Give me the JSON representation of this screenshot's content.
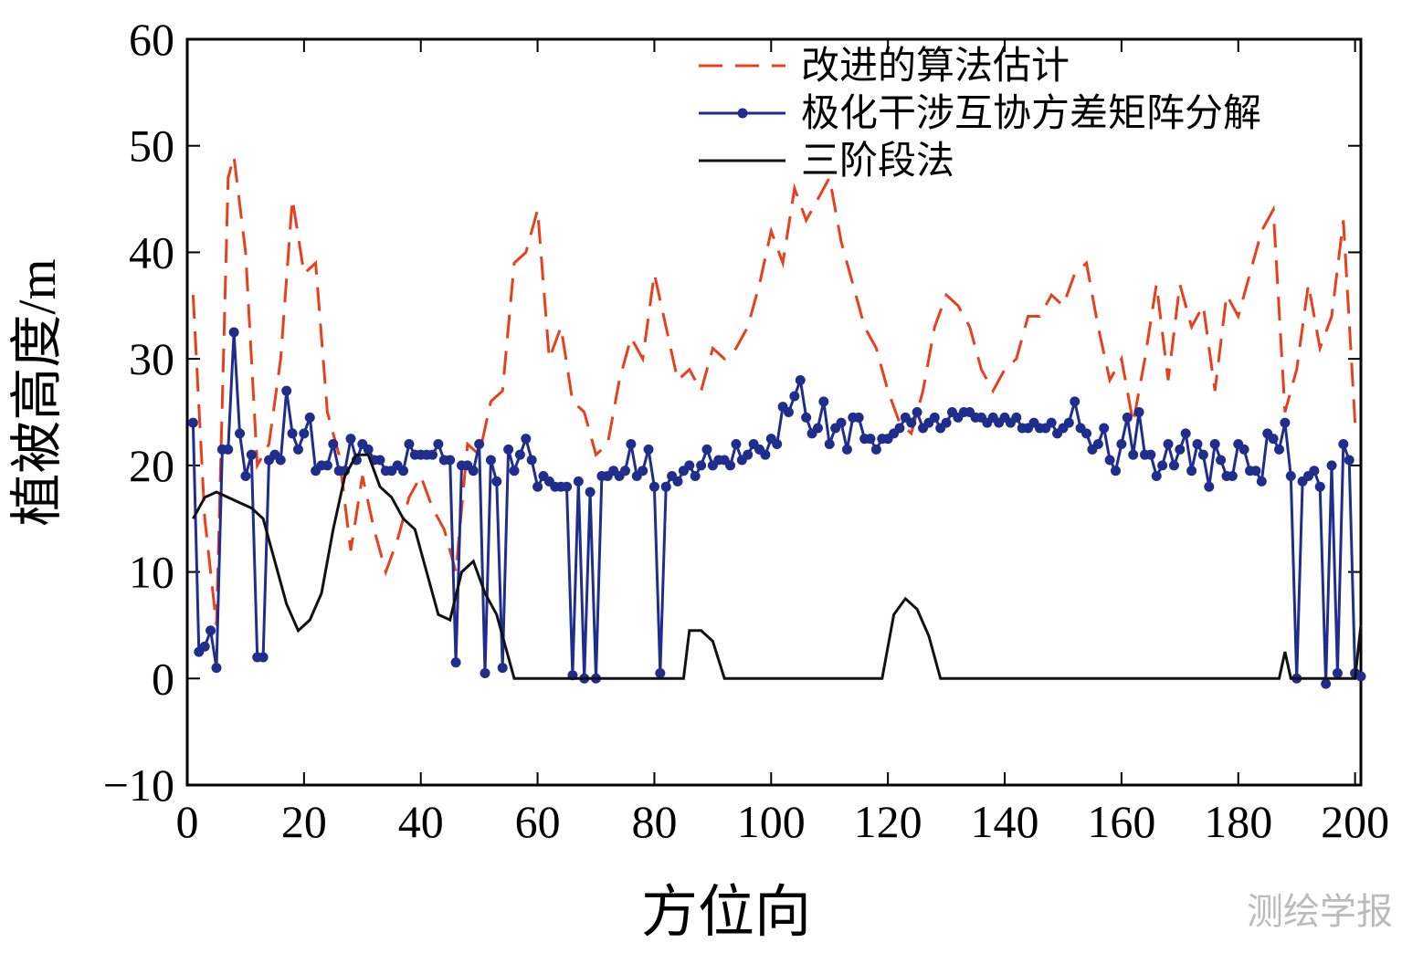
{
  "chart_data": {
    "type": "line",
    "x_label": "方位向",
    "y_label": "植被高度/m",
    "watermark": "测绘学报",
    "xlim": [
      0,
      201
    ],
    "ylim": [
      -10,
      60
    ],
    "xticks": [
      0,
      20,
      40,
      60,
      80,
      100,
      120,
      140,
      160,
      180,
      200
    ],
    "yticks": [
      {
        "value": -10,
        "label": "−10"
      },
      0,
      10,
      20,
      30,
      40,
      50,
      60
    ],
    "legend": "upper right",
    "series": [
      {
        "name": "改进的算法估计",
        "color": "#e8401c",
        "style": "dashed",
        "marker": false,
        "x": [
          1,
          3,
          5,
          7,
          8,
          10,
          12,
          14,
          16,
          18,
          20,
          22,
          24,
          26,
          28,
          30,
          32,
          34,
          36,
          38,
          40,
          42,
          44,
          46,
          48,
          50,
          52,
          54,
          56,
          58,
          60,
          62,
          64,
          66,
          68,
          70,
          72,
          74,
          76,
          78,
          80,
          82,
          84,
          86,
          88,
          90,
          92,
          94,
          96,
          98,
          100,
          102,
          104,
          106,
          108,
          110,
          112,
          114,
          116,
          118,
          120,
          122,
          124,
          126,
          128,
          130,
          132,
          134,
          136,
          138,
          140,
          142,
          144,
          146,
          148,
          150,
          152,
          154,
          156,
          158,
          160,
          162,
          164,
          166,
          168,
          170,
          172,
          174,
          176,
          178,
          180,
          182,
          184,
          186,
          188,
          190,
          192,
          194,
          196,
          198,
          200
        ],
        "values": [
          36,
          15,
          5,
          47,
          49,
          40,
          20,
          22,
          30,
          45,
          38,
          39,
          25,
          21,
          12,
          19,
          14,
          10,
          13,
          17,
          19,
          16,
          14,
          10,
          22,
          21,
          26,
          27,
          39,
          40,
          44,
          30,
          33,
          26,
          25,
          21,
          22,
          28,
          32,
          30,
          38,
          33,
          28,
          29,
          27,
          31,
          30,
          31,
          33,
          37,
          42,
          39,
          46,
          43,
          45,
          47,
          41,
          37,
          33,
          31,
          27,
          24,
          23,
          27,
          33,
          36,
          35,
          33,
          29,
          27,
          29,
          30,
          34,
          34,
          36,
          35,
          38,
          39,
          33,
          28,
          30,
          24,
          30,
          37,
          28,
          37,
          33,
          35,
          27,
          36,
          34,
          38,
          42,
          44,
          25,
          29,
          37,
          31,
          34,
          43,
          24
        ]
      },
      {
        "name": "极化干涉互协方差矩阵分解",
        "color": "#1f2e8c",
        "style": "solid",
        "marker": true,
        "x": [
          1,
          2,
          3,
          4,
          5,
          6,
          7,
          8,
          9,
          10,
          11,
          12,
          13,
          14,
          15,
          16,
          17,
          18,
          19,
          20,
          21,
          22,
          23,
          24,
          25,
          26,
          27,
          28,
          29,
          30,
          31,
          32,
          33,
          34,
          35,
          36,
          37,
          38,
          39,
          40,
          41,
          42,
          43,
          44,
          45,
          46,
          47,
          48,
          49,
          50,
          51,
          52,
          53,
          54,
          55,
          56,
          57,
          58,
          59,
          60,
          61,
          62,
          63,
          64,
          65,
          66,
          67,
          68,
          69,
          70,
          71,
          72,
          73,
          74,
          75,
          76,
          77,
          78,
          79,
          80,
          81,
          82,
          83,
          84,
          85,
          86,
          87,
          88,
          89,
          90,
          91,
          92,
          93,
          94,
          95,
          96,
          97,
          98,
          99,
          100,
          101,
          102,
          103,
          104,
          105,
          106,
          107,
          108,
          109,
          110,
          111,
          112,
          113,
          114,
          115,
          116,
          117,
          118,
          119,
          120,
          121,
          122,
          123,
          124,
          125,
          126,
          127,
          128,
          129,
          130,
          131,
          132,
          133,
          134,
          135,
          136,
          137,
          138,
          139,
          140,
          141,
          142,
          143,
          144,
          145,
          146,
          147,
          148,
          149,
          150,
          151,
          152,
          153,
          154,
          155,
          156,
          157,
          158,
          159,
          160,
          161,
          162,
          163,
          164,
          165,
          166,
          167,
          168,
          169,
          170,
          171,
          172,
          173,
          174,
          175,
          176,
          177,
          178,
          179,
          180,
          181,
          182,
          183,
          184,
          185,
          186,
          187,
          188,
          189,
          190,
          191,
          192,
          193,
          194,
          195,
          196,
          197,
          198,
          199,
          200,
          201
        ],
        "values": [
          24,
          2.5,
          3,
          4.5,
          1,
          21.5,
          21.5,
          32.5,
          23,
          19,
          21,
          2,
          2,
          20.5,
          21,
          20.5,
          27,
          23,
          21.5,
          23,
          24.5,
          19.5,
          20,
          20,
          22,
          19.5,
          19.5,
          22.5,
          20.5,
          22,
          21.5,
          20.5,
          20.5,
          19.5,
          19.5,
          20,
          19.5,
          22,
          21,
          21,
          21,
          21,
          22,
          20.5,
          20.5,
          1.5,
          20,
          20,
          19.5,
          22,
          0.5,
          20.5,
          18.5,
          1,
          21.5,
          19.5,
          21,
          22.5,
          20.5,
          18,
          19,
          18.5,
          18,
          18,
          18,
          0.3,
          18.5,
          0,
          17.5,
          0,
          19,
          19,
          19.5,
          19,
          19.5,
          22,
          19,
          19.5,
          21.5,
          18,
          0.5,
          18,
          19,
          18.5,
          19.5,
          20,
          19,
          20,
          21.5,
          20,
          20.5,
          20.5,
          20,
          22,
          20.5,
          21,
          22,
          21.5,
          21,
          22.5,
          22,
          25.5,
          25,
          26.5,
          28,
          24.5,
          23,
          23.5,
          26,
          22,
          23.5,
          24,
          21.5,
          24.5,
          24.5,
          22.5,
          22.5,
          21.5,
          22.5,
          22.5,
          23,
          23.5,
          24.5,
          24,
          25,
          23.5,
          24,
          24.5,
          23.5,
          24,
          25,
          24.5,
          25,
          25,
          24.5,
          24.5,
          24,
          24.5,
          24,
          24.5,
          24,
          24.5,
          23.5,
          23.5,
          24,
          23.5,
          23.5,
          24,
          23,
          23.5,
          24,
          26,
          23.5,
          23,
          21.5,
          22,
          23.5,
          20.5,
          19.5,
          22,
          24.5,
          21,
          25,
          21,
          21,
          19,
          20,
          22,
          20,
          21.5,
          23,
          19.5,
          22,
          21,
          18,
          22,
          20.5,
          19,
          19,
          22,
          21.5,
          19.5,
          19.5,
          18.5,
          23,
          22.5,
          21.5,
          24,
          19,
          0,
          18.5,
          19,
          19.5,
          18,
          -0.5,
          20,
          0.5,
          22,
          20.5,
          0.5,
          0.2
        ]
      },
      {
        "name": "三阶段法",
        "color": "#111111",
        "style": "solid",
        "marker": false,
        "x": [
          1,
          3,
          5,
          7,
          9,
          11,
          13,
          15,
          17,
          19,
          21,
          23,
          25,
          27,
          29,
          31,
          33,
          35,
          37,
          39,
          41,
          43,
          45,
          47,
          49,
          51,
          53,
          55,
          56,
          85,
          86,
          88,
          90,
          92,
          119,
          121,
          123,
          125,
          127,
          129,
          187,
          188,
          189,
          200,
          201
        ],
        "values": [
          15,
          17,
          17.5,
          17,
          16.5,
          16,
          15,
          11,
          7,
          4.5,
          5.5,
          8,
          14,
          19,
          21,
          21,
          18,
          17,
          15,
          14,
          10,
          6,
          5.5,
          10,
          11,
          8,
          6,
          2,
          0,
          0,
          4.5,
          4.5,
          3.5,
          0,
          0,
          6,
          7.5,
          6.5,
          4,
          0,
          0,
          2.5,
          0,
          0,
          5
        ]
      }
    ]
  }
}
